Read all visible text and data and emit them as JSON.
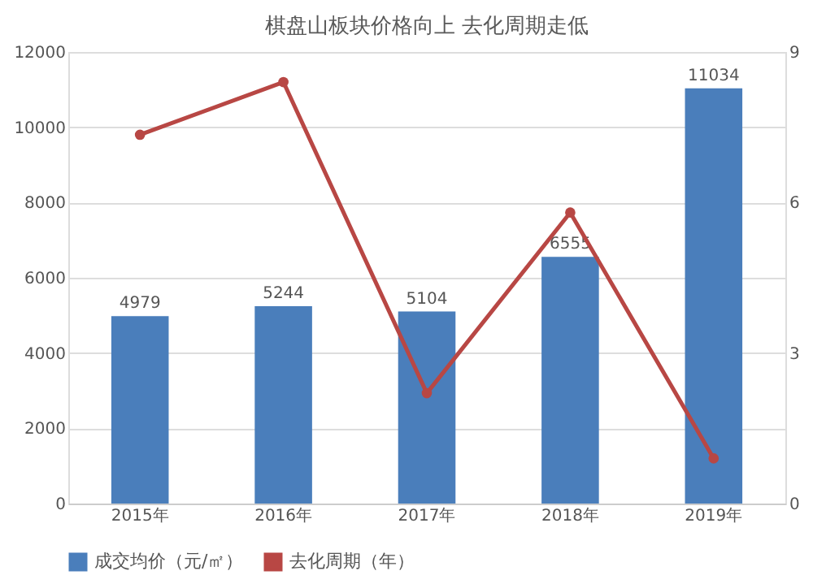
{
  "chart_data": {
    "type": "bar",
    "title": "棋盘山板块价格向上 去化周期走低",
    "categories": [
      "2015年",
      "2016年",
      "2017年",
      "2018年",
      "2019年"
    ],
    "series": [
      {
        "name": "成交均价（元/㎡）",
        "color": "#4a7ebb",
        "values": [
          4979,
          5244,
          5104,
          6555,
          11034
        ],
        "value_labels": [
          "4979",
          "5244",
          "5104",
          "6555",
          "11034"
        ]
      },
      {
        "name": "去化周期（年）",
        "type": "line",
        "axis": "y2",
        "color": "#b84744",
        "marker": "circle",
        "values": [
          7.35,
          8.4,
          2.2,
          5.8,
          0.9
        ]
      }
    ],
    "ylim": [
      0,
      12000
    ],
    "yticks": [
      0,
      2000,
      4000,
      6000,
      8000,
      10000,
      12000
    ],
    "y2lim": [
      0,
      9
    ],
    "y2ticks": [
      0,
      3,
      6,
      9
    ],
    "grid": "y",
    "legend": "bottom"
  }
}
